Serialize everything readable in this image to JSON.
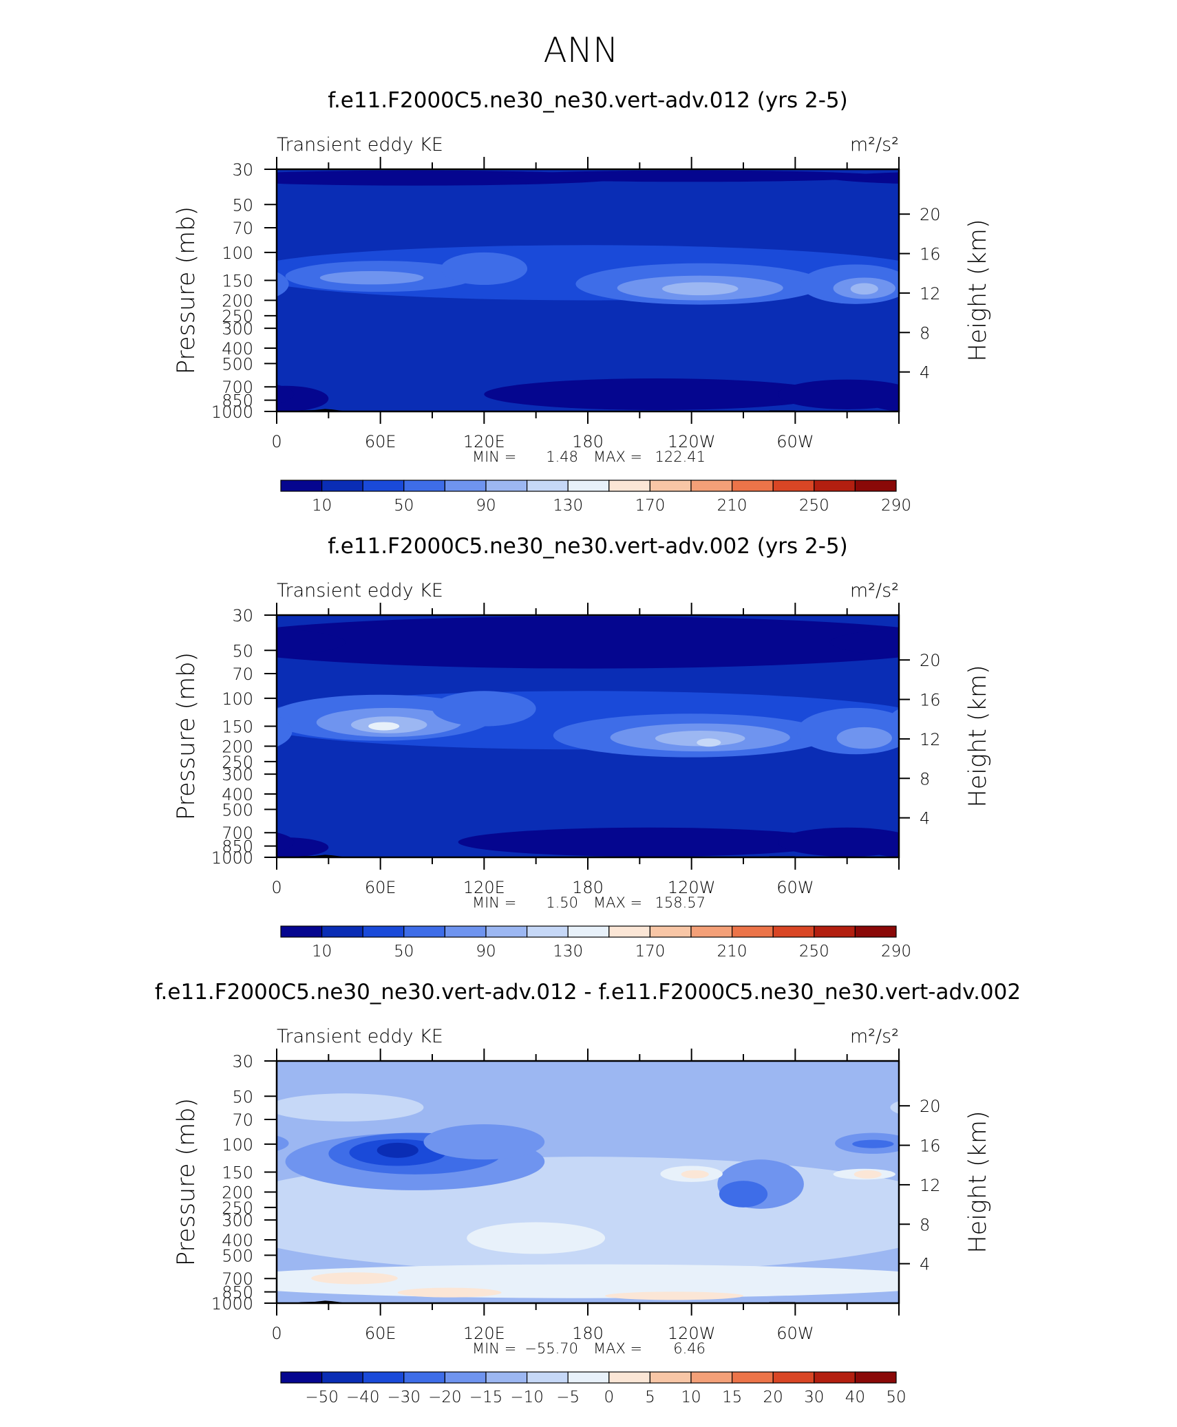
{
  "page": {
    "title": "ANN"
  },
  "chart_data": [
    {
      "type": "heatmap",
      "title": "f.e11.F2000C5.ne30_ne30.vert-adv.012 (yrs 2-5)",
      "left_label": "Transient eddy KE",
      "units": "m²/s²",
      "ylabel": "Pressure (mb)",
      "y2label": "Height (km)",
      "xticks": [
        "0",
        "60E",
        "120E",
        "180",
        "120W",
        "60W"
      ],
      "yticks": [
        "30",
        "50",
        "70",
        "100",
        "150",
        "200",
        "250",
        "300",
        "400",
        "500",
        "700",
        "850",
        "1000"
      ],
      "y2ticks": [
        "20",
        "16",
        "12",
        "8",
        "4"
      ],
      "stats": {
        "min_label": "MIN =",
        "min": "1.48",
        "max_label": "MAX =",
        "max": "122.41"
      },
      "colorbar": {
        "labels": [
          "10",
          "50",
          "90",
          "130",
          "170",
          "210",
          "250",
          "290"
        ]
      },
      "background_level": 1,
      "features": [
        {
          "lon": 80,
          "p": 20,
          "rx": 120,
          "ry": 18,
          "level": 0
        },
        {
          "lon": 240,
          "p": 20,
          "rx": 110,
          "ry": 16,
          "level": 0
        },
        {
          "lon": 180,
          "p": 145,
          "rx": 200,
          "ry": 55,
          "level": 2
        },
        {
          "lon": 60,
          "p": 145,
          "rx": 55,
          "ry": 32,
          "level": 3
        },
        {
          "lon": 55,
          "p": 145,
          "rx": 30,
          "ry": 14,
          "level": 4
        },
        {
          "lon": 120,
          "p": 130,
          "rx": 25,
          "ry": 30,
          "level": 3
        },
        {
          "lon": 245,
          "p": 165,
          "rx": 72,
          "ry": 48,
          "level": 3
        },
        {
          "lon": 245,
          "p": 170,
          "rx": 48,
          "ry": 30,
          "level": 4
        },
        {
          "lon": 245,
          "p": 170,
          "rx": 22,
          "ry": 16,
          "level": 5
        },
        {
          "lon": 335,
          "p": 165,
          "rx": 32,
          "ry": 46,
          "level": 3
        },
        {
          "lon": 340,
          "p": 170,
          "rx": 18,
          "ry": 26,
          "level": 4
        },
        {
          "lon": 340,
          "p": 170,
          "rx": 8,
          "ry": 14,
          "level": 5
        },
        {
          "lon": 220,
          "p": 800,
          "rx": 100,
          "ry": 180,
          "level": 0
        },
        {
          "lon": 5,
          "p": 850,
          "rx": 25,
          "ry": 160,
          "level": 0
        },
        {
          "lon": 330,
          "p": 800,
          "rx": 40,
          "ry": 170,
          "level": 0
        }
      ]
    },
    {
      "type": "heatmap",
      "title": "f.e11.F2000C5.ne30_ne30.vert-adv.002 (yrs 2-5)",
      "left_label": "Transient eddy KE",
      "units": "m²/s²",
      "ylabel": "Pressure (mb)",
      "y2label": "Height (km)",
      "xticks": [
        "0",
        "60E",
        "120E",
        "180",
        "120W",
        "60W"
      ],
      "yticks": [
        "30",
        "50",
        "70",
        "100",
        "150",
        "200",
        "250",
        "300",
        "400",
        "500",
        "700",
        "850",
        "1000"
      ],
      "y2ticks": [
        "20",
        "16",
        "12",
        "8",
        "4"
      ],
      "stats": {
        "min_label": "MIN =",
        "min": "1.50",
        "max_label": "MAX =",
        "max": "158.57"
      },
      "colorbar": {
        "labels": [
          "10",
          "50",
          "90",
          "130",
          "170",
          "210",
          "250",
          "290"
        ]
      },
      "background_level": 1,
      "features": [
        {
          "lon": 180,
          "p": 25,
          "rx": 220,
          "ry": 40,
          "level": 0
        },
        {
          "lon": 180,
          "p": 150,
          "rx": 200,
          "ry": 60,
          "level": 2
        },
        {
          "lon": 60,
          "p": 140,
          "rx": 65,
          "ry": 45,
          "level": 3
        },
        {
          "lon": 65,
          "p": 145,
          "rx": 42,
          "ry": 30,
          "level": 4
        },
        {
          "lon": 65,
          "p": 148,
          "rx": 22,
          "ry": 18,
          "level": 5
        },
        {
          "lon": 62,
          "p": 150,
          "rx": 9,
          "ry": 6,
          "level": 7
        },
        {
          "lon": 120,
          "p": 120,
          "rx": 30,
          "ry": 30,
          "level": 3
        },
        {
          "lon": 240,
          "p": 180,
          "rx": 80,
          "ry": 55,
          "level": 3
        },
        {
          "lon": 245,
          "p": 180,
          "rx": 52,
          "ry": 36,
          "level": 4
        },
        {
          "lon": 245,
          "p": 180,
          "rx": 26,
          "ry": 20,
          "level": 5
        },
        {
          "lon": 250,
          "p": 190,
          "rx": 7,
          "ry": 5,
          "level": 6
        },
        {
          "lon": 335,
          "p": 170,
          "rx": 34,
          "ry": 55,
          "level": 3
        },
        {
          "lon": 340,
          "p": 180,
          "rx": 16,
          "ry": 28,
          "level": 4
        },
        {
          "lon": 215,
          "p": 820,
          "rx": 110,
          "ry": 170,
          "level": 0
        },
        {
          "lon": 5,
          "p": 880,
          "rx": 25,
          "ry": 130,
          "level": 0
        },
        {
          "lon": 330,
          "p": 820,
          "rx": 40,
          "ry": 170,
          "level": 0
        }
      ]
    },
    {
      "type": "heatmap",
      "title": "f.e11.F2000C5.ne30_ne30.vert-adv.012 - f.e11.F2000C5.ne30_ne30.vert-adv.002",
      "left_label": "Transient eddy KE",
      "units": "m²/s²",
      "ylabel": "Pressure (mb)",
      "y2label": "Height (km)",
      "xticks": [
        "0",
        "60E",
        "120E",
        "180",
        "120W",
        "60W"
      ],
      "yticks": [
        "30",
        "50",
        "70",
        "100",
        "150",
        "200",
        "250",
        "300",
        "400",
        "500",
        "700",
        "850",
        "1000"
      ],
      "y2ticks": [
        "20",
        "16",
        "12",
        "8",
        "4"
      ],
      "stats": {
        "min_label": "MIN =",
        "min": "−55.70",
        "max_label": "MAX =",
        "max": "6.46"
      },
      "colorbar": {
        "labels": [
          "−50",
          "−40",
          "−30",
          "−20",
          "−15",
          "−10",
          "−5",
          "0",
          "5",
          "10",
          "15",
          "20",
          "30",
          "40",
          "50"
        ]
      },
      "background_level": 5,
      "features": [
        {
          "lon": 40,
          "p": 60,
          "rx": 45,
          "ry": 12,
          "level": 6
        },
        {
          "lon": 180,
          "p": 380,
          "rx": 220,
          "ry": 260,
          "level": 6
        },
        {
          "lon": 180,
          "p": 750,
          "rx": 220,
          "ry": 180,
          "level": 7
        },
        {
          "lon": 150,
          "p": 400,
          "rx": 40,
          "ry": 90,
          "level": 7
        },
        {
          "lon": 45,
          "p": 700,
          "rx": 25,
          "ry": 60,
          "level": 8
        },
        {
          "lon": 100,
          "p": 860,
          "rx": 30,
          "ry": 60,
          "level": 8
        },
        {
          "lon": 230,
          "p": 900,
          "rx": 40,
          "ry": 40,
          "level": 8
        },
        {
          "lon": 80,
          "p": 140,
          "rx": 75,
          "ry": 55,
          "level": 4
        },
        {
          "lon": 80,
          "p": 120,
          "rx": 50,
          "ry": 35,
          "level": 3
        },
        {
          "lon": 70,
          "p": 115,
          "rx": 28,
          "ry": 22,
          "level": 2
        },
        {
          "lon": 70,
          "p": 110,
          "rx": 12,
          "ry": 12,
          "level": 1
        },
        {
          "lon": 120,
          "p": 100,
          "rx": 35,
          "ry": 25,
          "level": 4
        },
        {
          "lon": 280,
          "p": 190,
          "rx": 25,
          "ry": 65,
          "level": 4
        },
        {
          "lon": 270,
          "p": 210,
          "rx": 14,
          "ry": 40,
          "level": 3
        },
        {
          "lon": 345,
          "p": 100,
          "rx": 22,
          "ry": 15,
          "level": 4
        },
        {
          "lon": 345,
          "p": 100,
          "rx": 12,
          "ry": 6,
          "level": 3
        },
        {
          "lon": 240,
          "p": 155,
          "rx": 18,
          "ry": 18,
          "level": 7
        },
        {
          "lon": 242,
          "p": 155,
          "rx": 8,
          "ry": 8,
          "level": 8
        },
        {
          "lon": 340,
          "p": 155,
          "rx": 18,
          "ry": 12,
          "level": 7
        },
        {
          "lon": 342,
          "p": 155,
          "rx": 8,
          "ry": 6,
          "level": 8
        }
      ]
    }
  ],
  "colors": {
    "abs_palette": [
      "#05068f",
      "#0a2db5",
      "#1a4ad9",
      "#3e6de8",
      "#6f94ef",
      "#9cb7f2",
      "#c6d8f7",
      "#e8f1fa",
      "#fbe6d6",
      "#f8c6a6",
      "#f4a078",
      "#ec7449",
      "#d94625",
      "#b31f10",
      "#8a0908"
    ],
    "diff_palette": [
      "#05068f",
      "#0a2db5",
      "#1a4ad9",
      "#3e6de8",
      "#6f94ef",
      "#9cb7f2",
      "#c6d8f7",
      "#e8f1fa",
      "#fbe6d6",
      "#f8c6a6",
      "#f4a078",
      "#ec7449",
      "#d94625",
      "#b31f10",
      "#8a0908"
    ],
    "terrain": "#000000"
  }
}
